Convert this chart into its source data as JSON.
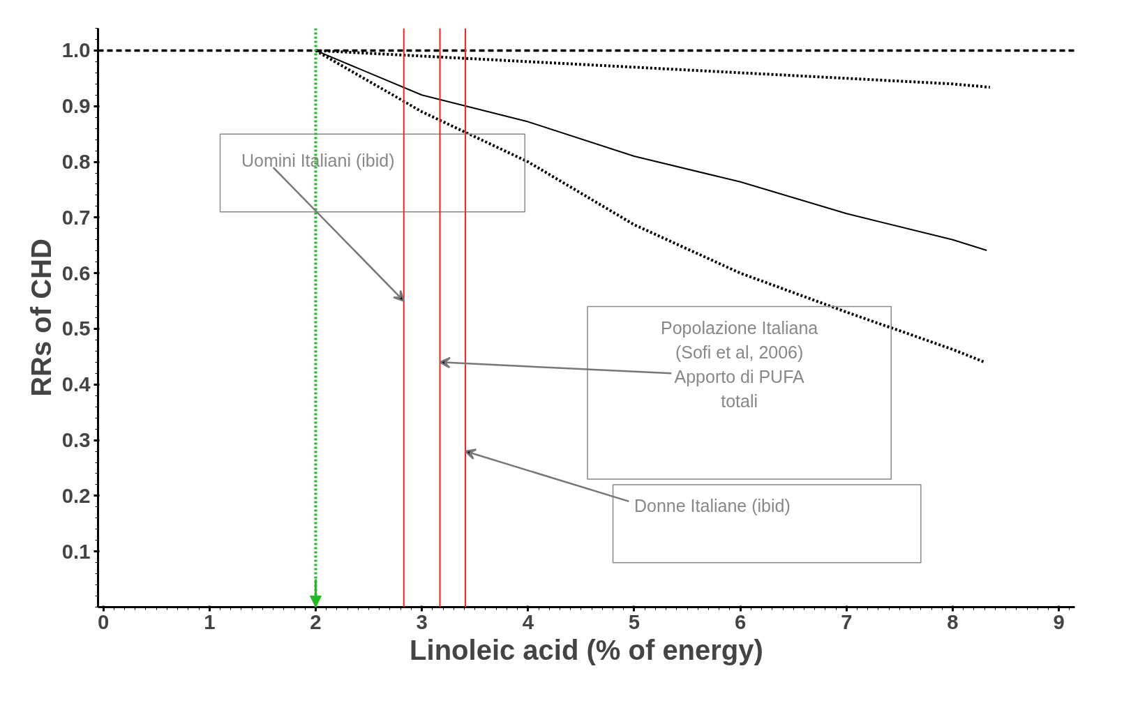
{
  "chart_data": {
    "type": "line",
    "xlabel": "Linoleic acid (% of energy)",
    "ylabel": "RRs of CHD",
    "xlim": [
      -0.05,
      9.15
    ],
    "ylim": [
      0,
      1.04
    ],
    "xticks": [
      0,
      1,
      2,
      3,
      4,
      5,
      6,
      7,
      8,
      9
    ],
    "yticks": [
      0.1,
      0.2,
      0.3,
      0.4,
      0.5,
      0.6,
      0.7,
      0.8,
      0.9,
      {
        "value": 1,
        "label": "1.0"
      }
    ],
    "grid": false,
    "series": [
      {
        "color": "#000000",
        "line_style": "dotted",
        "x": [
          2,
          3,
          4,
          5,
          6,
          7,
          8,
          8.35
        ],
        "values": [
          1.0,
          0.99,
          0.98,
          0.97,
          0.96,
          0.95,
          0.94,
          0.934
        ]
      },
      {
        "color": "#000000",
        "line_style": "solid",
        "x": [
          2,
          3,
          4,
          5,
          6,
          7,
          8,
          8.32
        ],
        "values": [
          1.0,
          0.92,
          0.872,
          0.81,
          0.764,
          0.707,
          0.66,
          0.641
        ]
      },
      {
        "color": "#000000",
        "line_style": "dotted",
        "x": [
          2,
          3,
          4,
          5,
          6,
          7,
          8,
          8.3
        ],
        "values": [
          1.0,
          0.89,
          0.8,
          0.687,
          0.6,
          0.53,
          0.463,
          0.44
        ]
      }
    ],
    "ref_lines": [
      {
        "axis": "y",
        "value": 1.0,
        "color": "#000000",
        "line_style": "dashed"
      },
      {
        "axis": "x",
        "value": 2,
        "color": "#22bb22",
        "line_style": "dotted"
      },
      {
        "axis": "x",
        "value": 2.83,
        "color": "#ff2020",
        "line_style": "solid"
      },
      {
        "axis": "x",
        "value": 3.17,
        "color": "#ff2020",
        "line_style": "solid"
      },
      {
        "axis": "x",
        "value": 3.41,
        "color": "#ff2020",
        "line_style": "solid"
      }
    ],
    "annotations": [
      {
        "text": "Uomini Italiani (ibid)",
        "x": 2.83,
        "y": 0.55
      },
      {
        "text": "Popolazione Italiana\n(Sofi et al, 2006)\nApporto di PUFA\ntotali",
        "x": 3.17,
        "y": 0.44
      },
      {
        "text": "Donne Italiane (ibid)",
        "x": 3.41,
        "y": 0.28
      }
    ]
  }
}
